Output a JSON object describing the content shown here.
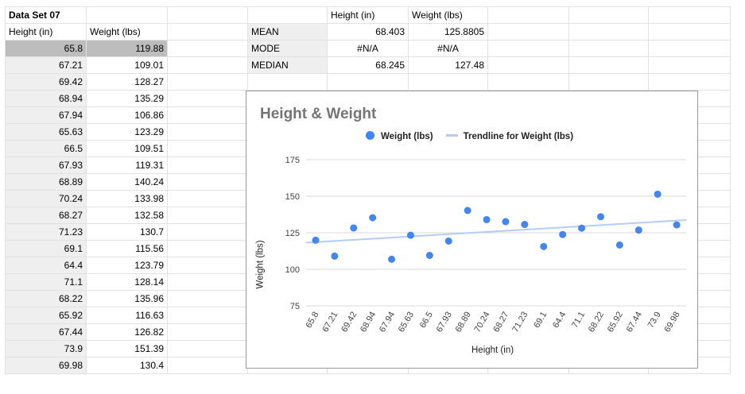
{
  "sheet": {
    "dataset_title": "Data Set 07",
    "col_headers": [
      "Height (in)",
      "Weight (lbs)"
    ],
    "rows": [
      [
        "65.8",
        "119.88"
      ],
      [
        "67.21",
        "109.01"
      ],
      [
        "69.42",
        "128.27"
      ],
      [
        "68.94",
        "135.29"
      ],
      [
        "67.94",
        "106.86"
      ],
      [
        "65.63",
        "123.29"
      ],
      [
        "66.5",
        "109.51"
      ],
      [
        "67.93",
        "119.31"
      ],
      [
        "68.89",
        "140.24"
      ],
      [
        "70.24",
        "133.98"
      ],
      [
        "68.27",
        "132.58"
      ],
      [
        "71.23",
        "130.7"
      ],
      [
        "69.1",
        "115.56"
      ],
      [
        "64.4",
        "123.79"
      ],
      [
        "71.1",
        "128.14"
      ],
      [
        "68.22",
        "135.96"
      ],
      [
        "65.92",
        "116.63"
      ],
      [
        "67.44",
        "126.82"
      ],
      [
        "73.9",
        "151.39"
      ],
      [
        "69.98",
        "130.4"
      ]
    ]
  },
  "stats": {
    "headers": [
      "Height (in)",
      "Weight (lbs)"
    ],
    "rows": [
      {
        "label": "MEAN",
        "height": "68.403",
        "weight": "125.8805"
      },
      {
        "label": "MODE",
        "height": "#N/A",
        "weight": "#N/A"
      },
      {
        "label": "MEDIAN",
        "height": "68.245",
        "weight": "127.48"
      }
    ]
  },
  "chart": {
    "title": "Height & Weight",
    "legend_series": "Weight (lbs)",
    "legend_trend": "Trendline for Weight (lbs)",
    "xlabel": "Height (in)",
    "ylabel": "Weight (lbs)"
  },
  "colors": {
    "point": "#4285f4",
    "trendline": "#b4cdf4",
    "gridline": "#d9d9d9",
    "header_shade": "#efefef",
    "selected_cell": "#bdbdbd"
  },
  "chart_data": {
    "type": "scatter",
    "title": "Height & Weight",
    "xlabel": "Height (in)",
    "ylabel": "Weight (lbs)",
    "categories": [
      "65.8",
      "67.21",
      "69.42",
      "68.94",
      "67.94",
      "65.63",
      "66.5",
      "67.93",
      "68.89",
      "70.24",
      "68.27",
      "71.23",
      "69.1",
      "64.4",
      "71.1",
      "68.22",
      "65.92",
      "67.44",
      "73.9",
      "69.98"
    ],
    "series": [
      {
        "name": "Weight (lbs)",
        "values": [
          119.88,
          109.01,
          128.27,
          135.29,
          106.86,
          123.29,
          109.51,
          119.31,
          140.24,
          133.98,
          132.58,
          130.7,
          115.56,
          123.79,
          128.14,
          135.96,
          116.63,
          126.82,
          151.39,
          130.4
        ]
      }
    ],
    "trendline": {
      "name": "Trendline for Weight (lbs)",
      "start": 118.2,
      "end": 133.7
    },
    "ylim": [
      75,
      175
    ],
    "yticks": [
      75,
      100,
      125,
      150,
      175
    ],
    "grid": true,
    "legend_position": "top"
  }
}
